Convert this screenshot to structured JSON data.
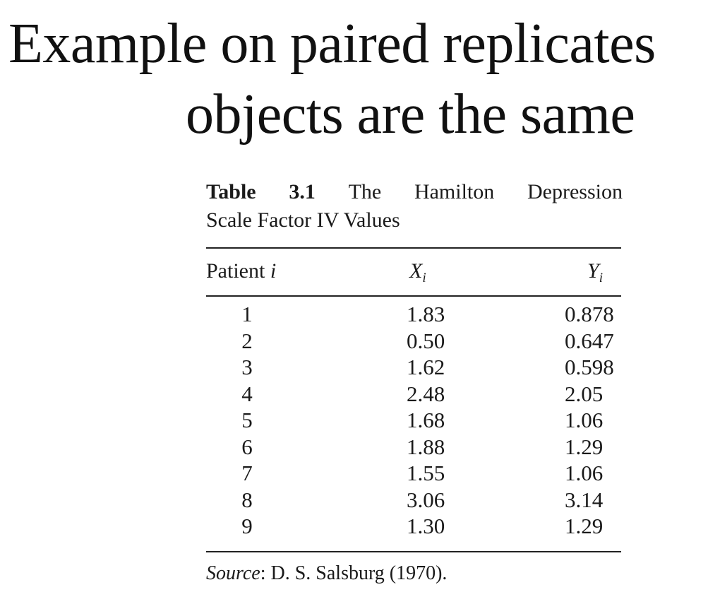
{
  "title": {
    "line1": "Example on paired replicates",
    "line2": "objects are the same"
  },
  "table": {
    "label": "Table",
    "number": "3.1",
    "caption_words": [
      "The",
      "Hamilton",
      "Depression"
    ],
    "caption_line2": "Scale Factor IV Values",
    "headers": {
      "patient": "Patient",
      "patient_index": "i",
      "x": "X",
      "x_index": "i",
      "y": "Y",
      "y_index": "i"
    },
    "rows": [
      {
        "patient": "1",
        "x": "1.83",
        "y": "0.878"
      },
      {
        "patient": "2",
        "x": "0.50",
        "y": "0.647"
      },
      {
        "patient": "3",
        "x": "1.62",
        "y": "0.598"
      },
      {
        "patient": "4",
        "x": "2.48",
        "y": "2.05"
      },
      {
        "patient": "5",
        "x": "1.68",
        "y": "1.06"
      },
      {
        "patient": "6",
        "x": "1.88",
        "y": "1.29"
      },
      {
        "patient": "7",
        "x": "1.55",
        "y": "1.06"
      },
      {
        "patient": "8",
        "x": "3.06",
        "y": "3.14"
      },
      {
        "patient": "9",
        "x": "1.30",
        "y": "1.29"
      }
    ],
    "source_label": "Source",
    "source_text": ": D. S. Salsburg (1970)."
  }
}
